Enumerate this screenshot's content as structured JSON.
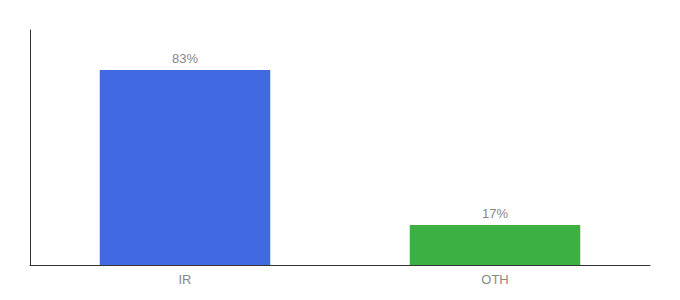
{
  "chart_data": {
    "type": "bar",
    "categories": [
      "IR",
      "OTH"
    ],
    "values": [
      83,
      17
    ],
    "value_labels": [
      "83%",
      "17%"
    ],
    "colors": [
      "#4169E1",
      "#3CB043"
    ],
    "ylim": [
      0,
      100
    ],
    "yticks": [],
    "grid": false,
    "data_labels": true,
    "tick_labels": "x"
  }
}
